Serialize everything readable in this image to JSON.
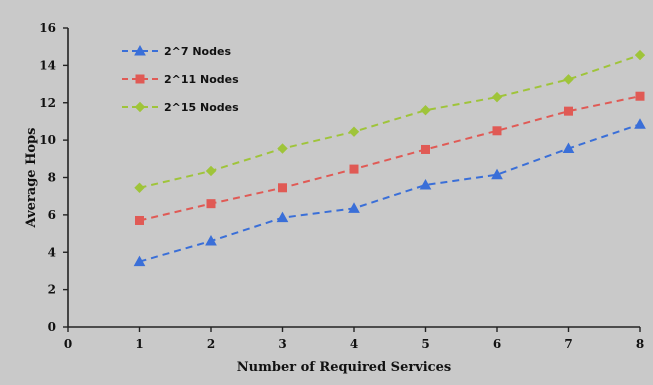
{
  "chart_data": {
    "type": "line",
    "title": "",
    "xlabel": "Number of Required Services",
    "ylabel": "Average Hops",
    "xlim": [
      0,
      8
    ],
    "ylim": [
      0,
      16
    ],
    "x_ticks": [
      0,
      1,
      2,
      3,
      4,
      5,
      6,
      7,
      8
    ],
    "y_ticks": [
      0,
      2,
      4,
      6,
      8,
      10,
      12,
      14,
      16
    ],
    "grid": false,
    "legend_position": "top-left",
    "x": [
      1,
      2,
      3,
      4,
      5,
      6,
      7,
      8
    ],
    "series": [
      {
        "name": "2^7 Nodes",
        "values": [
          3.5,
          4.6,
          5.85,
          6.35,
          7.6,
          8.15,
          9.55,
          10.85
        ],
        "color": "#3a6fd8",
        "marker": "triangle"
      },
      {
        "name": "2^11 Nodes",
        "values": [
          5.7,
          6.6,
          7.45,
          8.45,
          9.5,
          10.5,
          11.55,
          12.35
        ],
        "color": "#e05a55",
        "marker": "square"
      },
      {
        "name": "2^15 Nodes",
        "values": [
          7.45,
          8.35,
          9.55,
          10.45,
          11.6,
          12.3,
          13.25,
          14.55
        ],
        "color": "#9fc43a",
        "marker": "diamond"
      }
    ]
  }
}
